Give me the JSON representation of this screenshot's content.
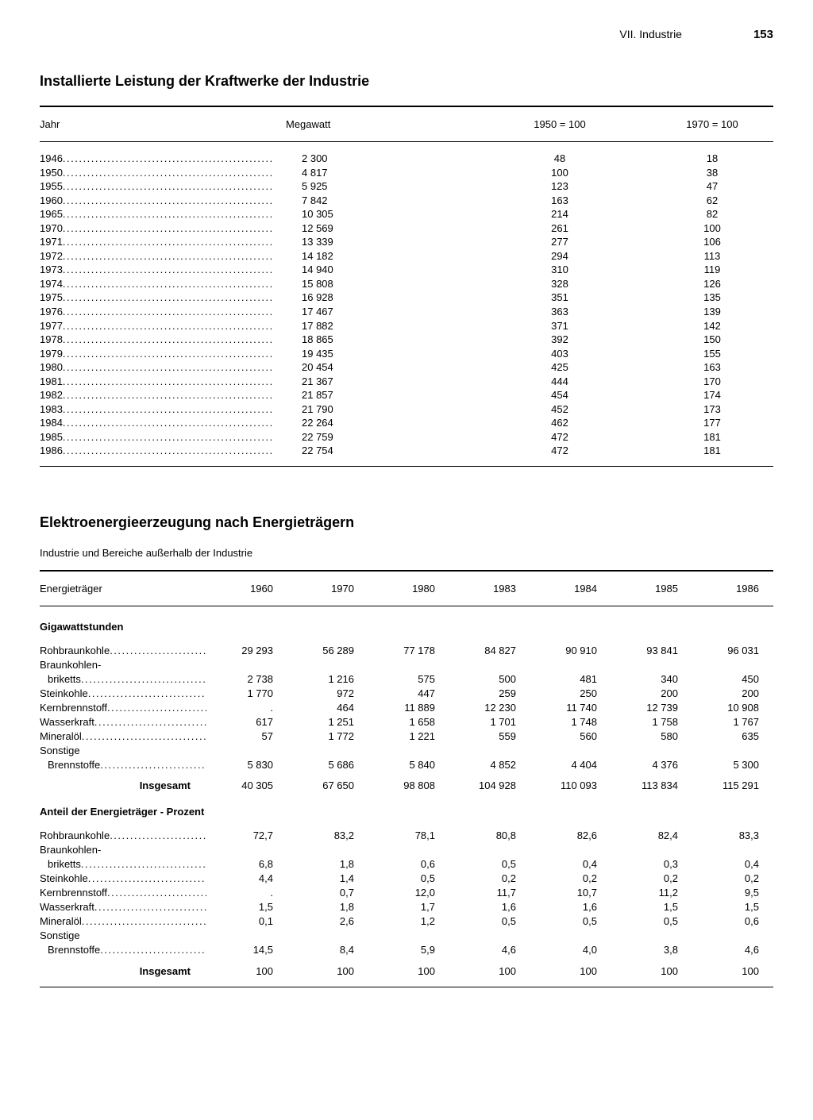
{
  "header": {
    "section": "VII. Industrie",
    "page": "153"
  },
  "table1": {
    "title": "Installierte Leistung der Kraftwerke der Industrie",
    "columns": {
      "year": "Jahr",
      "megawatt": "Megawatt",
      "index1950": "1950 = 100",
      "index1970": "1970 = 100"
    },
    "rows": [
      {
        "year": "1946",
        "mw": "2 300",
        "i1950": "48",
        "i1970": "18"
      },
      {
        "year": "1950",
        "mw": "4 817",
        "i1950": "100",
        "i1970": "38"
      },
      {
        "year": "1955",
        "mw": "5 925",
        "i1950": "123",
        "i1970": "47"
      },
      {
        "year": "1960",
        "mw": "7 842",
        "i1950": "163",
        "i1970": "62"
      },
      {
        "year": "1965",
        "mw": "10 305",
        "i1950": "214",
        "i1970": "82"
      },
      {
        "year": "1970",
        "mw": "12 569",
        "i1950": "261",
        "i1970": "100"
      },
      {
        "year": "1971",
        "mw": "13 339",
        "i1950": "277",
        "i1970": "106"
      },
      {
        "year": "1972",
        "mw": "14 182",
        "i1950": "294",
        "i1970": "113"
      },
      {
        "year": "1973",
        "mw": "14 940",
        "i1950": "310",
        "i1970": "119"
      },
      {
        "year": "1974",
        "mw": "15 808",
        "i1950": "328",
        "i1970": "126"
      },
      {
        "year": "1975",
        "mw": "16 928",
        "i1950": "351",
        "i1970": "135"
      },
      {
        "year": "1976",
        "mw": "17 467",
        "i1950": "363",
        "i1970": "139"
      },
      {
        "year": "1977",
        "mw": "17 882",
        "i1950": "371",
        "i1970": "142"
      },
      {
        "year": "1978",
        "mw": "18 865",
        "i1950": "392",
        "i1970": "150"
      },
      {
        "year": "1979",
        "mw": "19 435",
        "i1950": "403",
        "i1970": "155"
      },
      {
        "year": "1980",
        "mw": "20 454",
        "i1950": "425",
        "i1970": "163"
      },
      {
        "year": "1981",
        "mw": "21 367",
        "i1950": "444",
        "i1970": "170"
      },
      {
        "year": "1982",
        "mw": "21 857",
        "i1950": "454",
        "i1970": "174"
      },
      {
        "year": "1983",
        "mw": "21 790",
        "i1950": "452",
        "i1970": "173"
      },
      {
        "year": "1984",
        "mw": "22 264",
        "i1950": "462",
        "i1970": "177"
      },
      {
        "year": "1985",
        "mw": "22 759",
        "i1950": "472",
        "i1970": "181"
      },
      {
        "year": "1986",
        "mw": "22 754",
        "i1950": "472",
        "i1970": "181"
      }
    ]
  },
  "table2": {
    "title": "Elektroenergieerzeugung nach Energieträgern",
    "subtitle": "Industrie und Bereiche außerhalb der Industrie",
    "columns": {
      "label": "Energieträger",
      "y1960": "1960",
      "y1970": "1970",
      "y1980": "1980",
      "y1983": "1983",
      "y1984": "1984",
      "y1985": "1985",
      "y1986": "1986"
    },
    "sectionA": {
      "head": "Gigawattstunden",
      "rows": [
        {
          "label": "Rohbraunkohle",
          "indent": false,
          "v": [
            "29 293",
            "56 289",
            "77 178",
            "84 827",
            "90 910",
            "93 841",
            "96 031"
          ]
        },
        {
          "label": "Braunkohlen-",
          "indent": false,
          "nodots": true,
          "v": [
            "",
            "",
            "",
            "",
            "",
            "",
            ""
          ]
        },
        {
          "label": "briketts",
          "indent": true,
          "v": [
            "2 738",
            "1 216",
            "575",
            "500",
            "481",
            "340",
            "450"
          ]
        },
        {
          "label": "Steinkohle",
          "indent": false,
          "v": [
            "1 770",
            "972",
            "447",
            "259",
            "250",
            "200",
            "200"
          ]
        },
        {
          "label": "Kernbrennstoff",
          "indent": false,
          "v": [
            ".",
            "464",
            "11 889",
            "12 230",
            "11 740",
            "12 739",
            "10 908"
          ]
        },
        {
          "label": "Wasserkraft",
          "indent": false,
          "v": [
            "617",
            "1 251",
            "1 658",
            "1 701",
            "1 748",
            "1 758",
            "1 767"
          ]
        },
        {
          "label": "Mineralöl",
          "indent": false,
          "v": [
            "57",
            "1 772",
            "1 221",
            "559",
            "560",
            "580",
            "635"
          ]
        },
        {
          "label": "Sonstige",
          "indent": false,
          "nodots": true,
          "v": [
            "",
            "",
            "",
            "",
            "",
            "",
            ""
          ]
        },
        {
          "label": "Brennstoffe",
          "indent": true,
          "v": [
            "5 830",
            "5 686",
            "5 840",
            "4 852",
            "4 404",
            "4 376",
            "5 300"
          ]
        }
      ],
      "total_label": "Insgesamt",
      "total": [
        "40 305",
        "67 650",
        "98 808",
        "104 928",
        "110 093",
        "113 834",
        "115 291"
      ]
    },
    "sectionB": {
      "head": "Anteil der Energieträger - Prozent",
      "rows": [
        {
          "label": "Rohbraunkohle",
          "indent": false,
          "v": [
            "72,7",
            "83,2",
            "78,1",
            "80,8",
            "82,6",
            "82,4",
            "83,3"
          ]
        },
        {
          "label": "Braunkohlen-",
          "indent": false,
          "nodots": true,
          "v": [
            "",
            "",
            "",
            "",
            "",
            "",
            ""
          ]
        },
        {
          "label": "briketts",
          "indent": true,
          "v": [
            "6,8",
            "1,8",
            "0,6",
            "0,5",
            "0,4",
            "0,3",
            "0,4"
          ]
        },
        {
          "label": "Steinkohle",
          "indent": false,
          "v": [
            "4,4",
            "1,4",
            "0,5",
            "0,2",
            "0,2",
            "0,2",
            "0,2"
          ]
        },
        {
          "label": "Kernbrennstoff",
          "indent": false,
          "v": [
            ".",
            "0,7",
            "12,0",
            "11,7",
            "10,7",
            "11,2",
            "9,5"
          ]
        },
        {
          "label": "Wasserkraft",
          "indent": false,
          "v": [
            "1,5",
            "1,8",
            "1,7",
            "1,6",
            "1,6",
            "1,5",
            "1,5"
          ]
        },
        {
          "label": "Mineralöl",
          "indent": false,
          "v": [
            "0,1",
            "2,6",
            "1,2",
            "0,5",
            "0,5",
            "0,5",
            "0,6"
          ]
        },
        {
          "label": "Sonstige",
          "indent": false,
          "nodots": true,
          "v": [
            "",
            "",
            "",
            "",
            "",
            "",
            ""
          ]
        },
        {
          "label": "Brennstoffe",
          "indent": true,
          "v": [
            "14,5",
            "8,4",
            "5,9",
            "4,6",
            "4,0",
            "3,8",
            "4,6"
          ]
        }
      ],
      "total_label": "Insgesamt",
      "total": [
        "100",
        "100",
        "100",
        "100",
        "100",
        "100",
        "100"
      ]
    }
  },
  "dot_fill": "...................................................."
}
